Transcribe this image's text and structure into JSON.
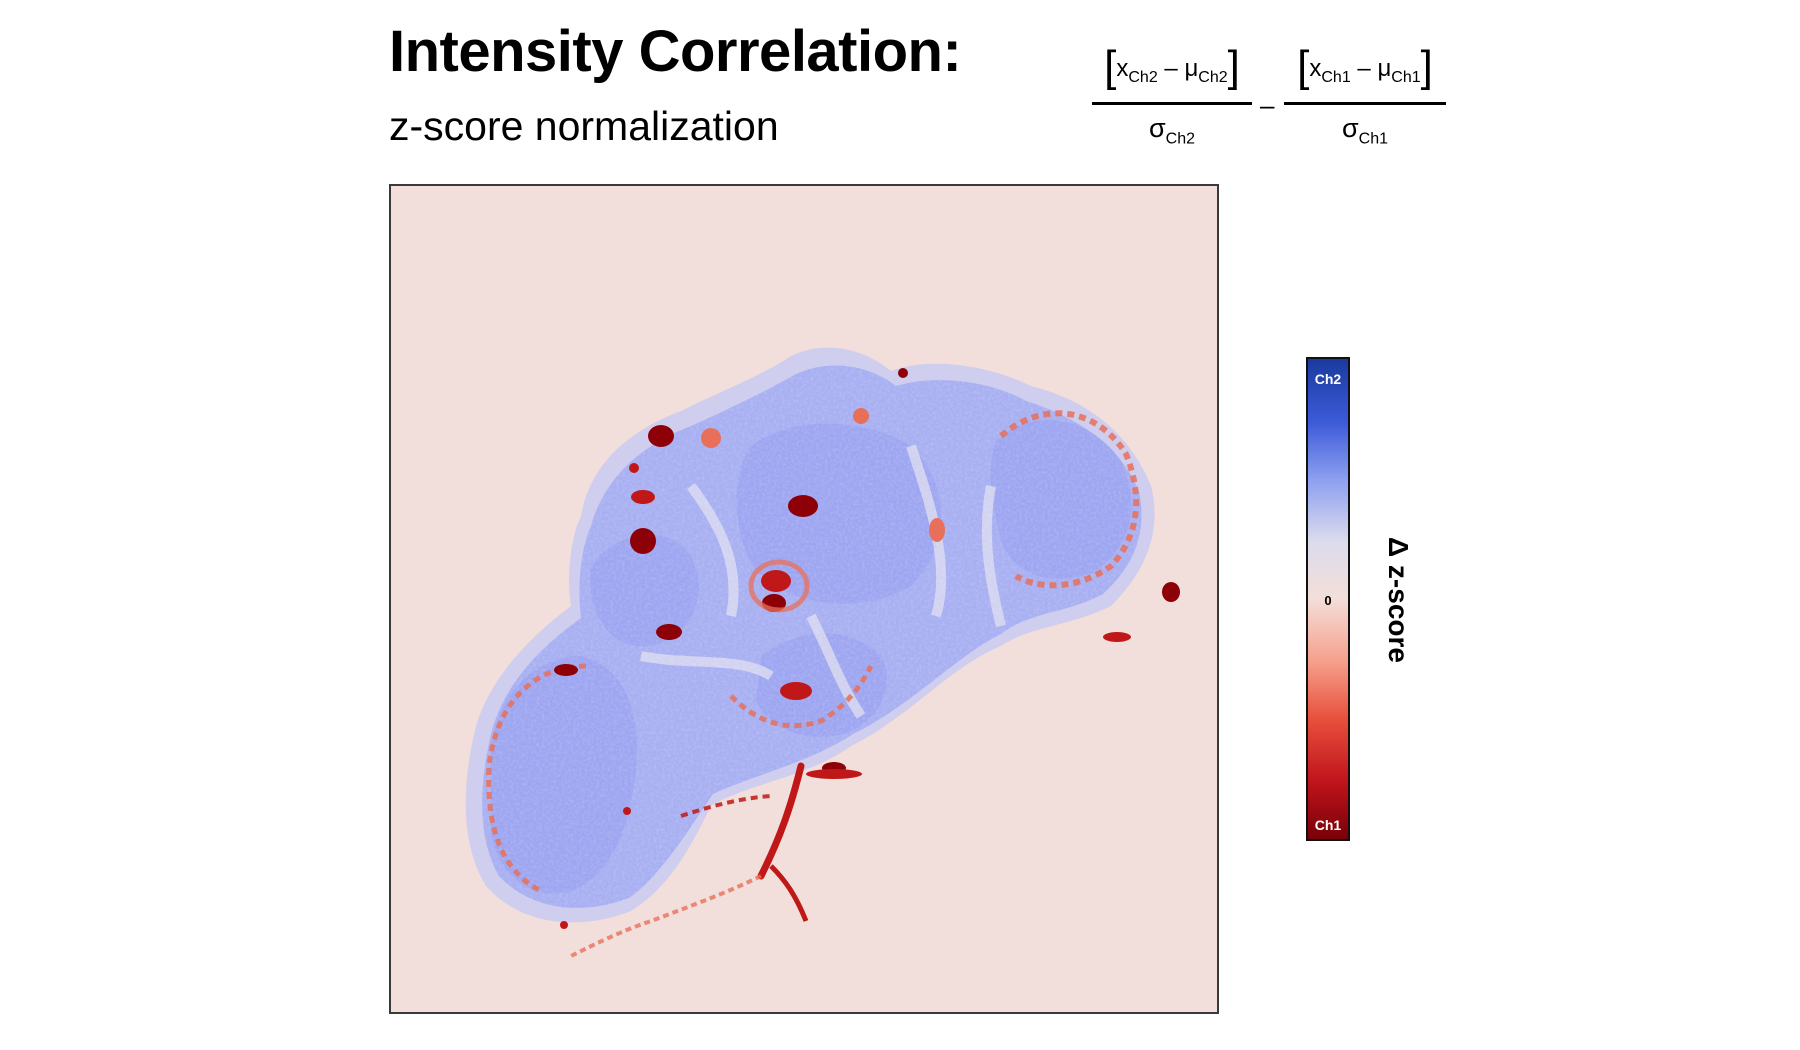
{
  "header": {
    "title": "Intensity Correlation:",
    "subtitle": "z-score normalization"
  },
  "formula": {
    "term1_x": "x",
    "term1_x_sub": "Ch2",
    "term1_mu": "μ",
    "term1_mu_sub": "Ch2",
    "term1_sigma": "σ",
    "term1_sigma_sub": "Ch2",
    "operator": "–",
    "term2_x": "x",
    "term2_x_sub": "Ch1",
    "term2_mu": "μ",
    "term2_mu_sub": "Ch1",
    "term2_sigma": "σ",
    "term2_sigma_sub": "Ch1",
    "inner_minus": "–"
  },
  "colorbar": {
    "title": "Δ z-score",
    "top_label": "Ch2",
    "mid_label": "0",
    "bottom_label": "Ch1",
    "colors": [
      "#1a3a9e",
      "#3c5ad8",
      "#8c9ef0",
      "#dcdcec",
      "#f3ded9",
      "#f5a08c",
      "#e8503c",
      "#c0141c",
      "#7a0008"
    ]
  },
  "chart_data": {
    "type": "heatmap",
    "title": "Intensity Correlation:",
    "subtitle": "z-score normalization",
    "scale": {
      "min_label": "Ch1",
      "zero_label": "0",
      "max_label": "Ch2"
    },
    "colors": {
      "background": "#f2dfdc",
      "tissue_ch2": "#a8b0f2",
      "tissue_ch2_light": "#c4c8f4",
      "tissue_ch2_deep": "#959ff0",
      "ch1_moderate": "#e8705a",
      "ch1_strong": "#c01818",
      "ch1_extreme": "#8e0008"
    }
  }
}
